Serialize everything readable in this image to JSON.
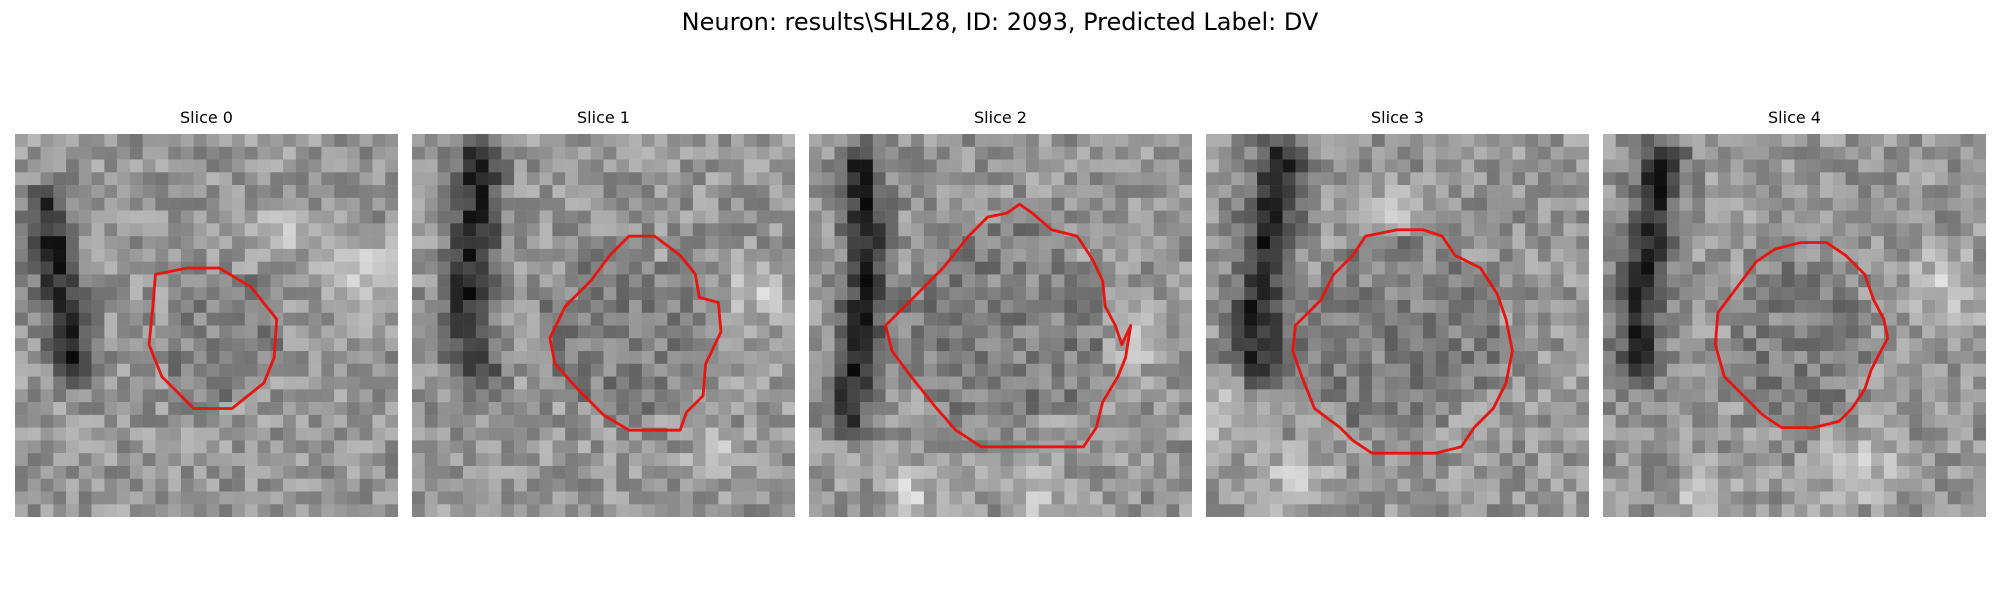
{
  "figure": {
    "title": "Neuron: results\\SHL28, ID: 2093, Predicted Label: DV"
  },
  "panels": [
    {
      "title": "Slice 0"
    },
    {
      "title": "Slice 1"
    },
    {
      "title": "Slice 2"
    },
    {
      "title": "Slice 3"
    },
    {
      "title": "Slice 4"
    }
  ],
  "colors": {
    "contour": "#e8140f",
    "background": "#ffffff"
  },
  "colormap": "grayscale"
}
